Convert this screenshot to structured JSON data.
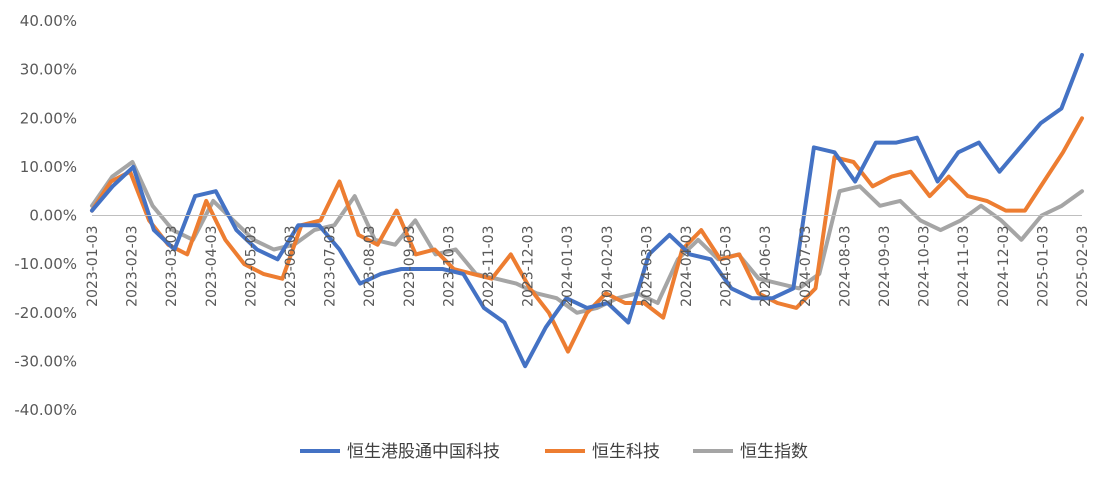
{
  "chart_data": {
    "type": "line",
    "title": "",
    "xlabel": "",
    "ylabel": "",
    "y_unit": "%",
    "ylim": [
      -40,
      40
    ],
    "yticks": [
      40,
      30,
      20,
      10,
      0,
      -10,
      -20,
      -30,
      -40
    ],
    "ytick_labels": [
      "40.00%",
      "30.00%",
      "20.00%",
      "10.00%",
      "0.00%",
      "-10.00%",
      "-20.00%",
      "-30.00%",
      "-40.00%"
    ],
    "x_tick_labels": [
      "2023-01-03",
      "2023-02-03",
      "2023-03-03",
      "2023-04-03",
      "2023-05-03",
      "2023-06-03",
      "2023-07-03",
      "2023-08-03",
      "2023-09-03",
      "2023-10-03",
      "2023-11-03",
      "2023-12-03",
      "2024-01-03",
      "2024-02-03",
      "2024-03-03",
      "2024-04-03",
      "2024-05-03",
      "2024-06-03",
      "2024-07-03",
      "2024-08-03",
      "2024-09-03",
      "2024-10-03",
      "2024-11-03",
      "2024-12-03",
      "2025-01-03",
      "2025-02-03"
    ],
    "legend_position": "bottom",
    "grid": false,
    "series": [
      {
        "name": "恒生港股通中国科技",
        "color": "#4472C4",
        "values": [
          1,
          6,
          10,
          -3,
          -7,
          4,
          5,
          -3,
          -7,
          -9,
          -2,
          -2,
          -7,
          -14,
          -12,
          -11,
          -11,
          -11,
          -12,
          -19,
          -22,
          -31,
          -23,
          -17,
          -19,
          -18,
          -22,
          -8,
          -4,
          -8,
          -9,
          -15,
          -17,
          -17,
          -15,
          14,
          13,
          7,
          15,
          15,
          16,
          7,
          13,
          15,
          9,
          14,
          19,
          22,
          33
        ]
      },
      {
        "name": "恒生科技",
        "color": "#ED7D31",
        "values": [
          1,
          7,
          9,
          -1,
          -6,
          -8,
          3,
          -5,
          -10,
          -12,
          -13,
          -2,
          -1,
          7,
          -4,
          -6,
          1,
          -8,
          -7,
          -11,
          -12,
          -13,
          -8,
          -15,
          -20,
          -28,
          -20,
          -16,
          -18,
          -18,
          -21,
          -7,
          -3,
          -9,
          -8,
          -16,
          -18,
          -19,
          -15,
          12,
          11,
          6,
          8,
          9,
          4,
          8,
          4,
          3,
          1,
          1,
          7,
          13,
          20
        ]
      },
      {
        "name": "恒生指数",
        "color": "#A5A5A5",
        "values": [
          2,
          8,
          11,
          2,
          -3,
          -5,
          3,
          -1,
          -5,
          -7,
          -6,
          -3,
          -2,
          4,
          -5,
          -6,
          -1,
          -8,
          -7,
          -12,
          -13,
          -14,
          -16,
          -17,
          -20,
          -19,
          -17,
          -16,
          -18,
          -9,
          -5,
          -9,
          -8,
          -13,
          -14,
          -15,
          -12,
          5,
          6,
          2,
          3,
          -1,
          -3,
          -1,
          2,
          -1,
          -5,
          0,
          2,
          5
        ]
      }
    ]
  }
}
